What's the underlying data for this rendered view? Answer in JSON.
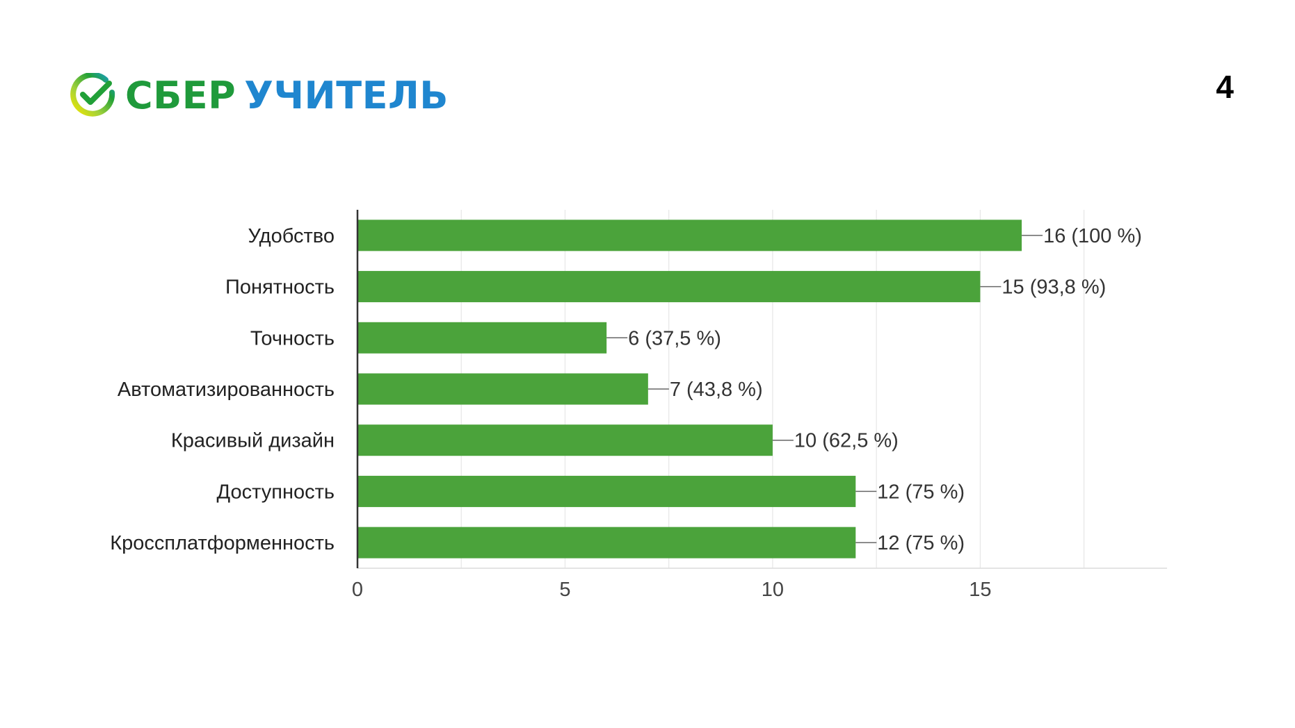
{
  "brand": {
    "name_part1": "СБЕР",
    "name_part2": "УЧИТЕЛЬ",
    "colors": {
      "green": "#1f9a3b",
      "blue": "#1f86cf",
      "yellow": "#f2e600"
    }
  },
  "slide": {
    "number": "4"
  },
  "chart_data": {
    "type": "bar",
    "orientation": "horizontal",
    "title": "",
    "xlabel": "",
    "ylabel": "",
    "categories": [
      "Удобство",
      "Понятность",
      "Точность",
      "Автоматизированность",
      "Красивый дизайн",
      "Доступность",
      "Кроссплатформенность"
    ],
    "values": [
      16,
      15,
      6,
      7,
      10,
      12,
      12
    ],
    "value_labels": [
      "16 (100 %)",
      "15 (93,8 %)",
      "6 (37,5 %)",
      "7 (43,8 %)",
      "10 (62,5 %)",
      "12 (75 %)",
      "12 (75 %)"
    ],
    "xlim": [
      0,
      19.5
    ],
    "xticks": [
      0,
      5,
      10,
      15
    ],
    "xtick_labels": [
      "0",
      "5",
      "10",
      "15"
    ],
    "grid_step": 2.5,
    "grid": true,
    "legend": "none",
    "bar_color": "#4ba33b"
  }
}
